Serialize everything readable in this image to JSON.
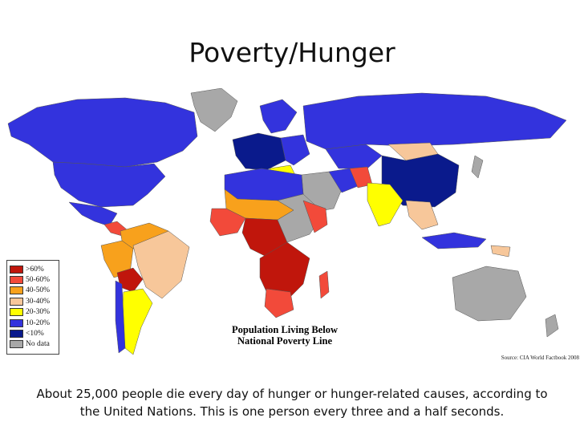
{
  "slide": {
    "title": "Poverty/Hunger",
    "caption_line1": "About 25,000 people die every day of hunger or hunger-related causes, according to",
    "caption_line2": "the United Nations. This is one person every three and a half seconds."
  },
  "map": {
    "title_line1": "Population Living Below",
    "title_line2": "National Poverty Line",
    "source": "Source: CIA World Factbook 2008",
    "legend": [
      {
        "label": ">60%",
        "color": "#c0160c"
      },
      {
        "label": "50-60%",
        "color": "#f24a3a"
      },
      {
        "label": "40-50%",
        "color": "#f8a11c"
      },
      {
        "label": "30-40%",
        "color": "#f7c79a"
      },
      {
        "label": "20-30%",
        "color": "#ffff00"
      },
      {
        "label": "10-20%",
        "color": "#3333dd"
      },
      {
        "label": "<10%",
        "color": "#0a1a8c"
      },
      {
        "label": "No data",
        "color": "#a8a8a8"
      }
    ],
    "background_color": "#ffffff"
  }
}
